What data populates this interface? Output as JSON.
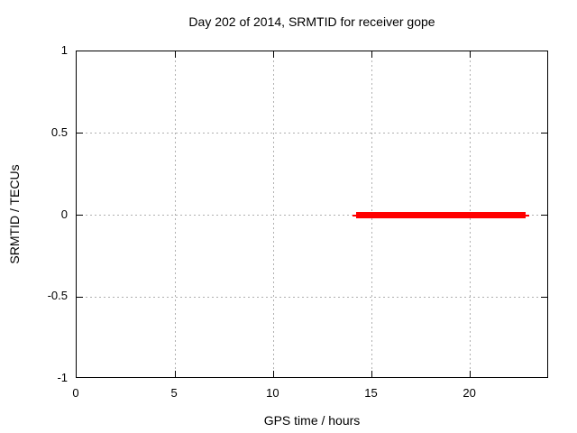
{
  "chart_data": {
    "type": "line",
    "title": "Day 202 of 2014, SRMTID for receiver gope",
    "xlabel": "GPS time / hours",
    "ylabel": "SRMTID / TECUs",
    "xlim": [
      0,
      24
    ],
    "ylim": [
      -1,
      1
    ],
    "xticks": [
      0,
      5,
      10,
      15,
      20
    ],
    "xtick_labels": [
      "0",
      "5",
      "10",
      "15",
      "20"
    ],
    "yticks": [
      1,
      0.5,
      0,
      -0.5,
      -1
    ],
    "ytick_labels": [
      "1",
      "0.5",
      "0",
      "-0.5",
      "-1"
    ],
    "grid": {
      "show": true,
      "style": "dotted",
      "color": "#b0b0b0",
      "at": "major ticks"
    },
    "legend": "none",
    "background": "#ffffff",
    "border_color": "#000000",
    "text_color": "#000000",
    "series": [
      {
        "name": "SRMTID",
        "color": "#ff0000",
        "description": "constant zero value segment",
        "y_value": 0,
        "x_start": 14.0,
        "x_end": 23.0,
        "segments": [
          {
            "x1": 14.0,
            "x2": 23.0,
            "y": 0,
            "stroke": "thin"
          },
          {
            "x1": 14.2,
            "x2": 22.8,
            "y": 0,
            "stroke": "thick"
          }
        ]
      }
    ]
  }
}
